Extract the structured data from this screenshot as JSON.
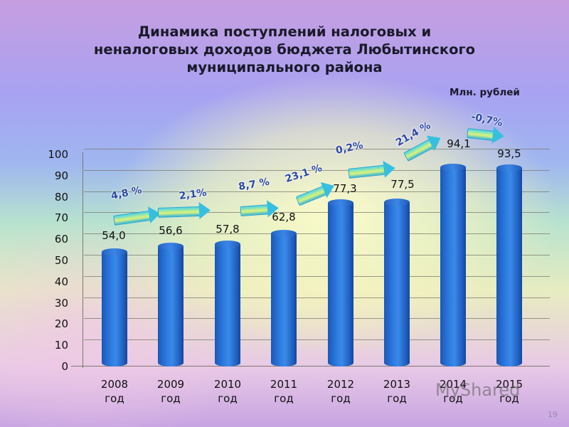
{
  "slide": {
    "title_lines": [
      "Динамика поступлений  налоговых и",
      "неналоговых доходов бюджета Любытинского",
      "муниципального района"
    ],
    "unit_label": "Млн. рублей",
    "page_number": "19",
    "watermark": "MyShared"
  },
  "chart_data": {
    "type": "bar",
    "title": "Динамика поступлений налоговых и неналоговых доходов бюджета Любытинского муниципального района",
    "ylabel": "Млн. рублей",
    "xlabel": "",
    "categories": [
      "2008 год",
      "2009 год",
      "2010 год",
      "2011 год",
      "2012 год",
      "2013 год",
      "2014 год",
      "2015 год"
    ],
    "values": [
      54.0,
      56.6,
      57.8,
      62.8,
      77.3,
      77.5,
      94.1,
      93.5
    ],
    "value_labels": [
      "54,0",
      "56,6",
      "57,8",
      "62,8",
      "77,3",
      "77,5",
      "94,1",
      "93,5"
    ],
    "growth_annotations": [
      "4,8 %",
      "2,1%",
      "8,7 %",
      "23,1 %",
      "0,2%",
      "21,4 %",
      "-0,7%"
    ],
    "ylim": [
      0,
      100
    ],
    "yticks": [
      "0",
      "10",
      "20",
      "30",
      "40",
      "50",
      "60",
      "70",
      "80",
      "90",
      "100"
    ],
    "grid": true,
    "legend": null,
    "style": "3d-cylinder",
    "colors": {
      "bar": "#2d7be0",
      "annotation": "#2a48a8",
      "arrow": "#4fd3e8"
    }
  }
}
